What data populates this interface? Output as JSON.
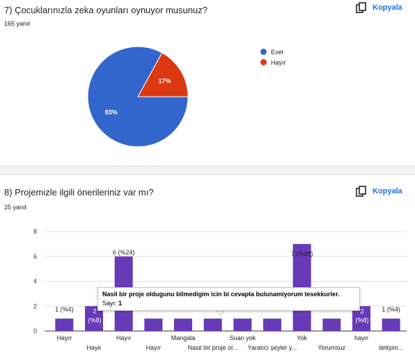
{
  "question1": {
    "title": "7) Çocuklarınızla zeka oyunları oynuyor musunuz?",
    "response_count": "165 yanıt",
    "copy_label": "Kopyala"
  },
  "question2": {
    "title": "8) Projemizle ilgili önerileriniz var mı?",
    "response_count": "25 yanıt",
    "copy_label": "Kopyala"
  },
  "tooltip": {
    "title": "Nasil bir proje oldugunu bilmedigim icin bi cevapta bulunamiyorum tesekkurler.",
    "value_label": "Sayı:",
    "value": "1"
  },
  "colors": {
    "blue": "#3366cc",
    "red": "#dc3912",
    "purple": "#673ab7",
    "accent": "#1a73e8"
  },
  "chart_data": [
    {
      "type": "pie",
      "slices": [
        {
          "label": "Evet",
          "value": 83,
          "display": "83%",
          "color": "#3366cc"
        },
        {
          "label": "Hayır",
          "value": 17,
          "display": "17%",
          "color": "#dc3912"
        }
      ],
      "legend": "right"
    },
    {
      "type": "bar",
      "categories": [
        "Hayır",
        "Hayir",
        "Hayır",
        "Hayır",
        "Mangala",
        "Nasil bir proje ol...",
        "Suan yok",
        "Yaratıcı şeyler y...",
        "Yok",
        "Yorumsuz",
        "hayır",
        "iletişim..."
      ],
      "values": [
        1,
        2,
        6,
        1,
        1,
        1,
        1,
        1,
        7,
        1,
        2,
        1
      ],
      "value_labels": [
        "1 (%4)",
        "2 (%8)",
        "6 (%24)",
        "",
        "",
        "",
        "",
        "",
        "7 (%28)",
        "",
        "2 (%8)",
        "1 (%4)"
      ],
      "yticks": [
        "0",
        "2",
        "4",
        "6",
        "8"
      ],
      "ylim": [
        0,
        8
      ],
      "color": "#673ab7",
      "grid": true
    }
  ]
}
